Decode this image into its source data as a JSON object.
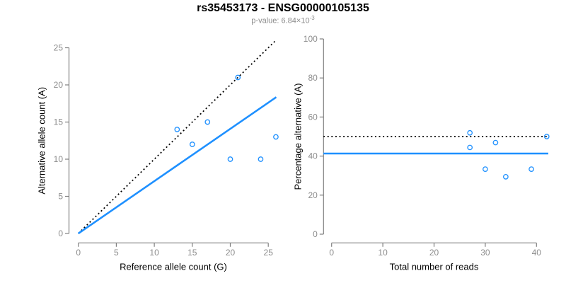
{
  "header": {
    "title": "rs35453173 - ENSG00000105135",
    "pvalue_label": "p-value: 6.84×10",
    "pvalue_exponent": "-3"
  },
  "colors": {
    "accent_blue": "#1e90ff",
    "dotted_black": "#000000",
    "axis_gray": "#808080",
    "tick_label_gray": "#8c8c8c"
  },
  "chart_data": [
    {
      "type": "scatter",
      "panel": "left",
      "xlabel": "Reference allele count (G)",
      "ylabel": "Alternative allele count (A)",
      "x_ticks": [
        0,
        5,
        10,
        15,
        20,
        25
      ],
      "y_ticks": [
        0,
        5,
        10,
        15,
        20,
        25
      ],
      "xlim": [
        0,
        26.3
      ],
      "ylim": [
        0,
        26.3
      ],
      "grid": "off",
      "point_color": "#1e90ff",
      "points": [
        [
          13,
          14
        ],
        [
          15,
          12
        ],
        [
          17,
          15
        ],
        [
          20,
          10
        ],
        [
          21,
          21
        ],
        [
          24,
          10
        ],
        [
          26,
          13
        ]
      ],
      "lines": [
        {
          "name": "expected-1to1",
          "style": "dotted",
          "color": "#000000",
          "x": [
            0,
            26.05
          ],
          "y": [
            0,
            26.05
          ]
        },
        {
          "name": "fitted-ratio",
          "style": "solid",
          "color": "#1e90ff",
          "x": [
            0,
            26.05
          ],
          "y": [
            0,
            18.35
          ]
        }
      ]
    },
    {
      "type": "scatter",
      "panel": "right",
      "xlabel": "Total number of reads",
      "ylabel": "Percentage alternative (A)",
      "x_ticks": [
        0,
        10,
        20,
        30,
        40
      ],
      "y_ticks": [
        0,
        20,
        40,
        60,
        80,
        100
      ],
      "xlim": [
        0,
        43
      ],
      "ylim": [
        0,
        100
      ],
      "grid": "off",
      "point_color": "#1e90ff",
      "points": [
        [
          27,
          51.9
        ],
        [
          27,
          44.4
        ],
        [
          30,
          33.3
        ],
        [
          32,
          46.9
        ],
        [
          34,
          29.4
        ],
        [
          39,
          33.3
        ],
        [
          42,
          50
        ]
      ],
      "lines": [
        {
          "name": "expected-50pct",
          "style": "dotted",
          "color": "#000000",
          "x": [
            -1.6,
            42.3
          ],
          "y": [
            50,
            50
          ]
        },
        {
          "name": "mean-percentage",
          "style": "solid",
          "color": "#1e90ff",
          "x": [
            -1.6,
            42.3
          ],
          "y": [
            41.3,
            41.3
          ]
        }
      ]
    }
  ]
}
